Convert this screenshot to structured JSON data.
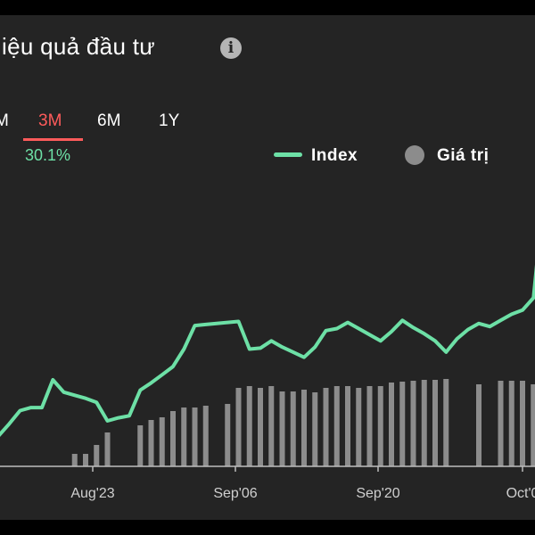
{
  "header": {
    "title": "iệu quả đầu tư",
    "info_icon": "info-icon"
  },
  "periods": {
    "tabs": [
      {
        "label": "M",
        "active": false
      },
      {
        "label": "3M",
        "active": true
      },
      {
        "label": "6M",
        "active": false
      },
      {
        "label": "1Y",
        "active": false
      }
    ],
    "active_return": "30.1%"
  },
  "legend": {
    "line_label": "Index",
    "bar_label": "Giá trị"
  },
  "colors": {
    "background": "#242424",
    "line": "#6de0a6",
    "bars": "#8c8c8c",
    "active_tab": "#ff5b5b"
  },
  "chart_data": {
    "type": "line",
    "x_tick_labels": [
      "Aug'23",
      "Sep'06",
      "Sep'20",
      "Oct'0"
    ],
    "series": [
      {
        "name": "Index",
        "values": [
          5,
          17,
          30,
          33,
          33,
          60,
          48,
          45,
          42,
          38,
          20,
          23,
          25,
          50,
          57,
          65,
          73,
          90,
          113,
          114,
          115,
          116,
          117,
          90,
          91,
          98,
          92,
          87,
          82,
          92,
          108,
          110,
          116,
          110,
          104,
          98,
          107,
          118,
          111,
          105,
          98,
          87,
          100,
          109,
          115,
          112,
          118,
          124,
          128,
          140
        ]
      },
      {
        "name": "Giá trị",
        "values": [
          0,
          0,
          0,
          0,
          0,
          0,
          0,
          14,
          14,
          24,
          38,
          0,
          0,
          46,
          52,
          55,
          62,
          66,
          66,
          68,
          0,
          70,
          88,
          90,
          88,
          90,
          84,
          84,
          86,
          83,
          88,
          90,
          90,
          88,
          90,
          90,
          94,
          95,
          96,
          97,
          97,
          98,
          0,
          0,
          92,
          0,
          96,
          96,
          96,
          92
        ]
      }
    ]
  }
}
